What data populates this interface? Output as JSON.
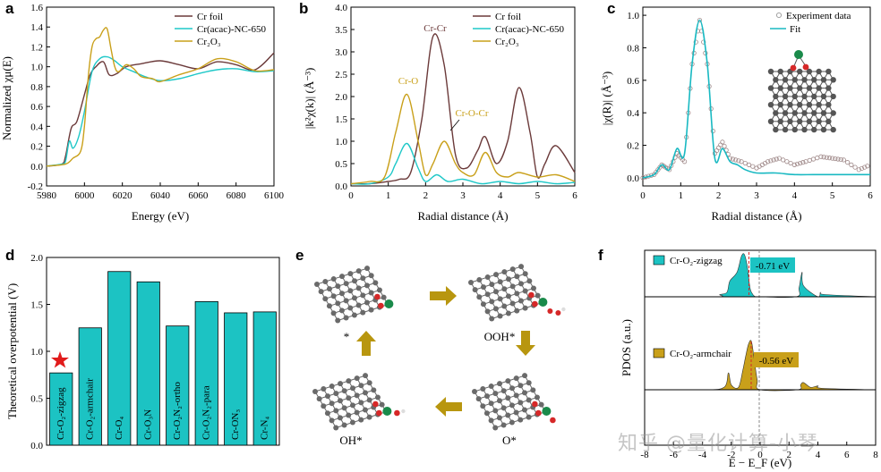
{
  "colors": {
    "cr_foil": "#6b3a3a",
    "crnc": "#1fc8c8",
    "cr2o3": "#c9a01a",
    "fit": "#19b9c2",
    "bar": "#1cc3c3",
    "star": "#e11b1b",
    "red_line": "#d62828",
    "arrow": "#b8960f"
  },
  "panel_a": {
    "label": "a",
    "ylabel": "Normalized χμ(E)",
    "xlabel": "Energy (eV)",
    "xticks": [
      "5980",
      "6000",
      "6020",
      "6040",
      "6060",
      "6080",
      "6100"
    ],
    "yticks": [
      "-0.2",
      "0.0",
      "0.2",
      "0.4",
      "0.6",
      "0.8",
      "1.0",
      "1.2",
      "1.4",
      "1.6"
    ],
    "legend": [
      "Cr foil",
      "Cr(acac)-NC-650",
      "Cr₂O₃"
    ]
  },
  "panel_b": {
    "label": "b",
    "ylabel": "|k²χ(k)| (Å⁻³)",
    "xlabel": "Radial distance (Å)",
    "xticks": [
      "0",
      "1",
      "2",
      "3",
      "4",
      "5",
      "6"
    ],
    "yticks": [
      "0.0",
      "0.5",
      "1.0",
      "1.5",
      "2.0",
      "2.5",
      "3.0",
      "3.5",
      "4.0"
    ],
    "legend": [
      "Cr foil",
      "Cr(acac)-NC-650",
      "Cr₂O₃"
    ],
    "annotations": [
      "Cr-Cr",
      "Cr-O",
      "Cr-O-Cr"
    ]
  },
  "panel_c": {
    "label": "c",
    "ylabel": "|χ(R)| (Å⁻³)",
    "xlabel": "Radial distance (Å)",
    "xticks": [
      "0",
      "1",
      "2",
      "3",
      "4",
      "5",
      "6"
    ],
    "yticks": [
      "0.0",
      "0.2",
      "0.4",
      "0.6",
      "0.8",
      "1.0"
    ],
    "legend": [
      "Experiment data",
      "Fit"
    ]
  },
  "panel_d": {
    "label": "d",
    "ylabel": "Theoretical overpotential (V)",
    "yticks": [
      "0.0",
      "0.5",
      "1.0",
      "1.5",
      "2.0"
    ]
  },
  "panel_e": {
    "label": "e",
    "states": [
      "*",
      "OOH*",
      "O*",
      "OH*"
    ]
  },
  "panel_f": {
    "label": "f",
    "ylabel": "PDOS (a.u.)",
    "xlabel": "E − E_F (eV)",
    "xticks": [
      "-8",
      "-6",
      "-4",
      "-2",
      "0",
      "2",
      "4",
      "6",
      "8"
    ],
    "legend_top": "Cr-O₂-zigzag",
    "legend_bottom": "Cr-O₂-armchair",
    "dband_top": "-0.71 eV",
    "dband_bottom": "-0.56 eV"
  },
  "chart_data": [
    {
      "type": "line",
      "title": "",
      "xlabel": "Energy (eV)",
      "ylabel": "Normalized χμ(E)",
      "xlim": [
        5980,
        6100
      ],
      "ylim": [
        -0.2,
        1.6
      ],
      "series": [
        {
          "name": "Cr foil",
          "x": [
            5980,
            5988,
            5990,
            5993,
            5996,
            6000,
            6003,
            6006,
            6010,
            6013,
            6017,
            6022,
            6030,
            6040,
            6050,
            6060,
            6070,
            6080,
            6090,
            6100
          ],
          "y": [
            0.0,
            0.02,
            0.1,
            0.38,
            0.45,
            0.72,
            0.92,
            1.0,
            1.05,
            0.92,
            0.93,
            1.0,
            1.03,
            1.06,
            1.02,
            0.98,
            1.05,
            1.02,
            0.97,
            1.14
          ]
        },
        {
          "name": "Cr(acac)-NC-650",
          "x": [
            5980,
            5988,
            5990,
            5992,
            5994,
            5997,
            6000,
            6004,
            6008,
            6012,
            6016,
            6020,
            6026,
            6032,
            6040,
            6050,
            6060,
            6070,
            6080,
            6090,
            6100
          ],
          "y": [
            0.0,
            0.02,
            0.05,
            0.25,
            0.18,
            0.3,
            0.55,
            0.95,
            1.08,
            1.1,
            1.06,
            1.0,
            0.95,
            0.9,
            0.86,
            0.88,
            0.93,
            0.97,
            0.98,
            0.95,
            0.96
          ]
        },
        {
          "name": "Cr2O3",
          "x": [
            5980,
            5990,
            5994,
            5998,
            6000,
            6002,
            6004,
            6006,
            6008,
            6010,
            6012,
            6014,
            6016,
            6018,
            6022,
            6026,
            6030,
            6036,
            6040,
            6050,
            6060,
            6070,
            6080,
            6090,
            6100
          ],
          "y": [
            0.0,
            0.02,
            0.08,
            0.15,
            0.4,
            0.9,
            1.2,
            1.28,
            1.3,
            1.37,
            1.38,
            1.18,
            1.0,
            0.95,
            1.02,
            0.98,
            0.9,
            0.88,
            0.85,
            0.92,
            0.98,
            1.08,
            1.05,
            0.96,
            0.97
          ]
        }
      ]
    },
    {
      "type": "line",
      "title": "",
      "xlabel": "Radial distance (Å)",
      "ylabel": "|k²χ(k)| (Å⁻³)",
      "xlim": [
        0,
        6
      ],
      "ylim": [
        0,
        4
      ],
      "series": [
        {
          "name": "Cr foil",
          "x": [
            0,
            0.5,
            1.0,
            1.3,
            1.6,
            1.9,
            2.2,
            2.5,
            2.8,
            3.1,
            3.4,
            3.6,
            3.9,
            4.2,
            4.5,
            4.8,
            5.0,
            5.2,
            5.5,
            6.0
          ],
          "y": [
            0.05,
            0.05,
            0.1,
            0.15,
            0.3,
            1.5,
            3.35,
            2.7,
            0.7,
            0.4,
            0.8,
            1.1,
            0.5,
            1.0,
            2.2,
            1.2,
            0.2,
            0.5,
            0.9,
            0.3
          ]
        },
        {
          "name": "Cr(acac)-NC-650",
          "x": [
            0,
            0.5,
            1.0,
            1.2,
            1.5,
            1.8,
            2.0,
            2.3,
            2.6,
            3.0,
            3.5,
            4.0,
            4.5,
            5.0,
            5.5,
            6.0
          ],
          "y": [
            0.05,
            0.05,
            0.2,
            0.5,
            0.95,
            0.4,
            0.1,
            0.25,
            0.1,
            0.15,
            0.05,
            0.1,
            0.05,
            0.1,
            0.05,
            0.08
          ]
        },
        {
          "name": "Cr2O3",
          "x": [
            0,
            0.5,
            0.9,
            1.2,
            1.5,
            1.8,
            2.0,
            2.2,
            2.5,
            2.8,
            3.0,
            3.3,
            3.6,
            3.9,
            4.2,
            4.5,
            5.0,
            5.5,
            6.0
          ],
          "y": [
            0.05,
            0.1,
            0.2,
            1.2,
            2.05,
            1.0,
            0.25,
            0.5,
            1.0,
            0.5,
            0.3,
            0.25,
            0.75,
            0.3,
            0.2,
            0.3,
            0.2,
            0.25,
            0.1
          ]
        }
      ]
    },
    {
      "type": "line",
      "title": "",
      "xlabel": "Radial distance (Å)",
      "ylabel": "|χ(R)| (Å⁻³)",
      "xlim": [
        0,
        6
      ],
      "ylim": [
        -0.05,
        1.05
      ],
      "series": [
        {
          "name": "Fit",
          "x": [
            0,
            0.3,
            0.5,
            0.7,
            0.9,
            1.1,
            1.3,
            1.5,
            1.7,
            1.9,
            2.1,
            2.3,
            2.5,
            2.7,
            3.0,
            3.5,
            4.0,
            4.5,
            5.0,
            5.5,
            6.0
          ],
          "y": [
            0.0,
            0.02,
            0.08,
            0.05,
            0.18,
            0.15,
            0.7,
            0.97,
            0.7,
            0.12,
            0.18,
            0.1,
            0.08,
            0.05,
            0.03,
            0.03,
            0.02,
            0.02,
            0.02,
            0.02,
            0.02
          ]
        },
        {
          "name": "Experiment data",
          "x": [
            0,
            0.3,
            0.5,
            0.7,
            0.9,
            1.1,
            1.3,
            1.5,
            1.7,
            1.9,
            2.1,
            2.3,
            2.6,
            3.0,
            3.3,
            3.6,
            4.0,
            4.3,
            4.7,
            5.0,
            5.3,
            5.7,
            6.0
          ],
          "y": [
            0.0,
            0.02,
            0.08,
            0.05,
            0.15,
            0.1,
            0.7,
            0.97,
            0.7,
            0.15,
            0.22,
            0.12,
            0.1,
            0.06,
            0.1,
            0.12,
            0.08,
            0.1,
            0.13,
            0.12,
            0.11,
            0.05,
            0.08
          ]
        }
      ]
    },
    {
      "type": "bar",
      "title": "",
      "ylabel": "Theoretical overpotential (V)",
      "ylim": [
        0,
        2
      ],
      "categories": [
        "Cr-O₂-zigzag",
        "Cr-O₂-armchair",
        "Cr-O₄",
        "Cr-O₃N",
        "Cr-O₂N₂-ortho",
        "Cr-O₂N₂-para",
        "Cr-ON₃",
        "Cr-N₄"
      ],
      "values": [
        0.77,
        1.25,
        1.85,
        1.74,
        1.27,
        1.53,
        1.41,
        1.42
      ]
    },
    {
      "type": "area",
      "title": "",
      "xlabel": "E − E_F (eV)",
      "ylabel": "PDOS (a.u.)",
      "xlim": [
        -8,
        8
      ],
      "series": [
        {
          "name": "Cr-O₂-zigzag",
          "x": [
            -8,
            -3,
            -2.8,
            -2.3,
            -2.1,
            -1.6,
            -1.3,
            -1.1,
            -0.9,
            -0.7,
            -0.5,
            -0.3,
            0,
            2.5,
            2.7,
            2.9,
            3.0,
            4.0,
            4.2,
            4.5,
            8
          ],
          "y": [
            0,
            0,
            0.05,
            0.1,
            0.35,
            0.55,
            0.9,
            0.95,
            0.7,
            0.2,
            0.05,
            0,
            0,
            0,
            0.2,
            0.55,
            0.25,
            0,
            0.1,
            0.05,
            0
          ]
        },
        {
          "name": "Cr-O₂-armchair",
          "x": [
            -8,
            -4,
            -2.5,
            -2.2,
            -2.0,
            -1.5,
            -1.2,
            -1.0,
            -0.8,
            -0.6,
            -0.4,
            -0.2,
            0,
            2.6,
            2.8,
            3.0,
            3.5,
            4.0,
            4.3,
            8
          ],
          "y": [
            0,
            0,
            0.05,
            0.35,
            0.1,
            0.05,
            0.4,
            0.7,
            0.95,
            1.0,
            0.6,
            0.2,
            0,
            0,
            0.1,
            0.15,
            0.05,
            0.08,
            0.03,
            0
          ]
        }
      ]
    }
  ],
  "watermark": "知乎 @量化计算-小琴"
}
